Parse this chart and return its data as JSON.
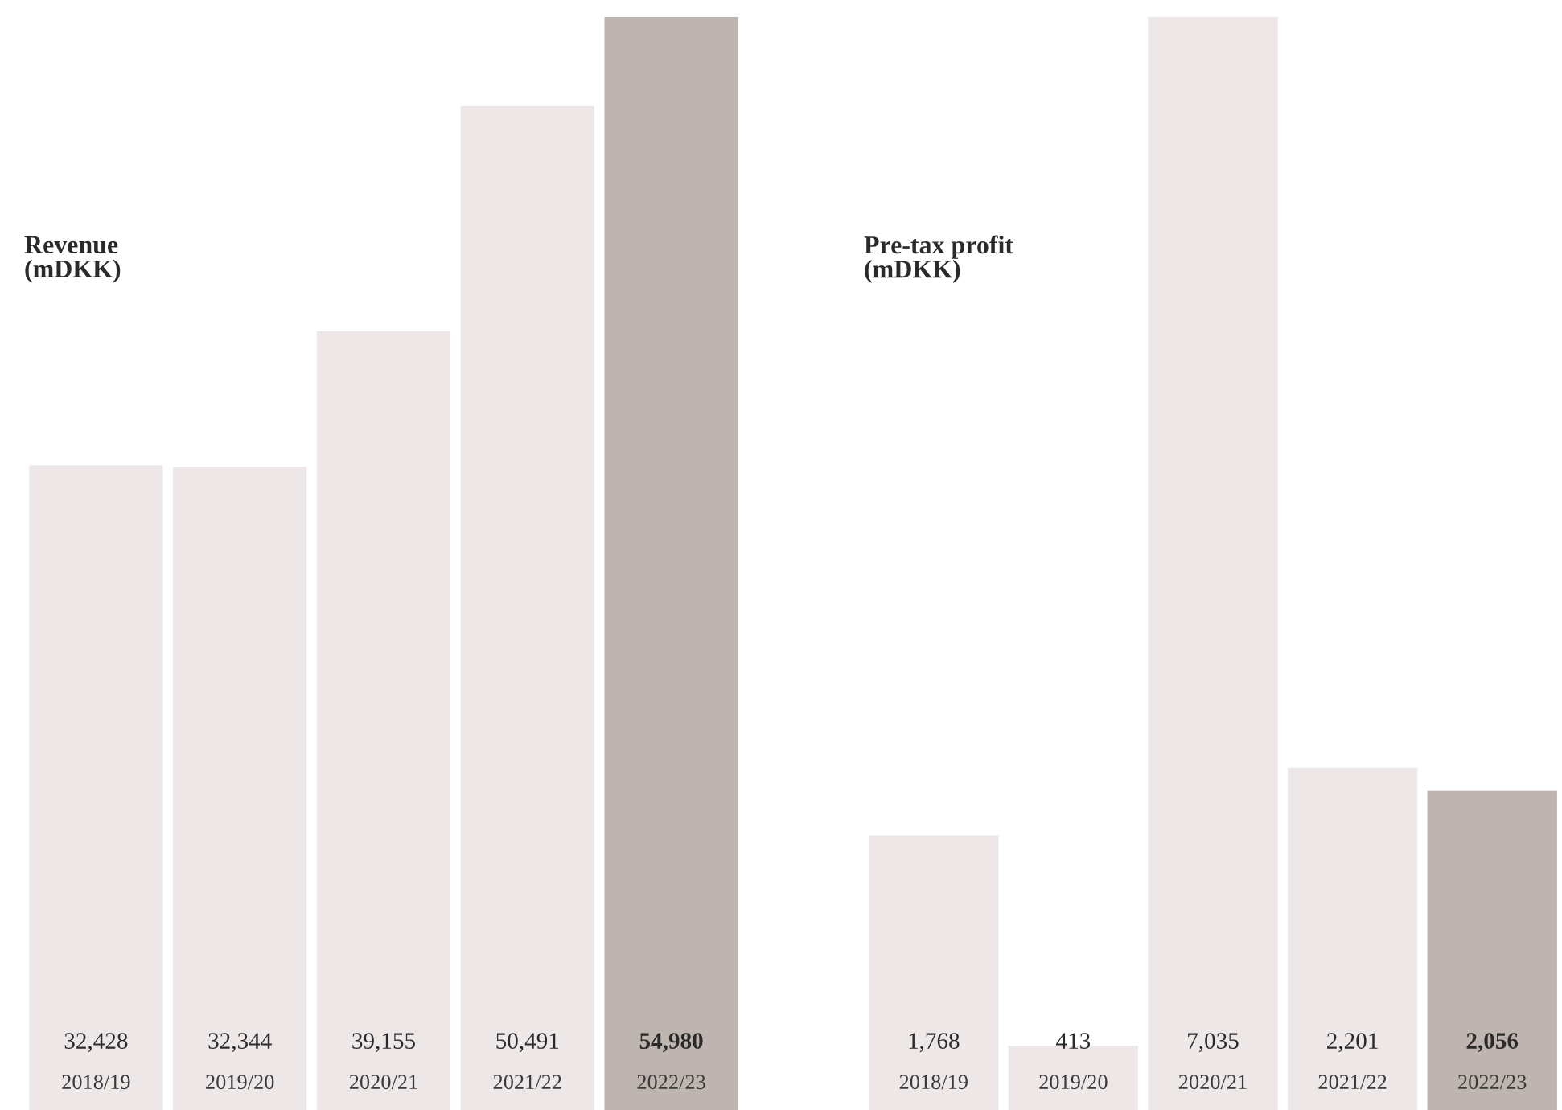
{
  "chart_data": [
    {
      "type": "bar",
      "title": "Revenue\n(mDKK)",
      "categories": [
        "2018/19",
        "2019/20",
        "2020/21",
        "2021/22",
        "2022/23"
      ],
      "values": [
        32428,
        32344,
        39155,
        50491,
        54980
      ],
      "value_labels": [
        "32,428",
        "32,344",
        "39,155",
        "50,491",
        "54,980"
      ],
      "colors": [
        "#ede8e7",
        "#ede8e7",
        "#ede8e7",
        "#ede8e7",
        "#bfb5b0"
      ],
      "grid": false,
      "legend": false
    },
    {
      "type": "bar",
      "title": "Pre-tax profit\n(mDKK)",
      "categories": [
        "2018/19",
        "2019/20",
        "2020/21",
        "2021/22",
        "2022/23"
      ],
      "values": [
        1768,
        413,
        7035,
        2201,
        2056
      ],
      "value_labels": [
        "1,768",
        "413",
        "7,035",
        "2,201",
        "2,056"
      ],
      "colors": [
        "#ede8e7",
        "#ede8e7",
        "#ede8e7",
        "#ede8e7",
        "#bfb5b0"
      ],
      "grid": false,
      "legend": false
    }
  ]
}
